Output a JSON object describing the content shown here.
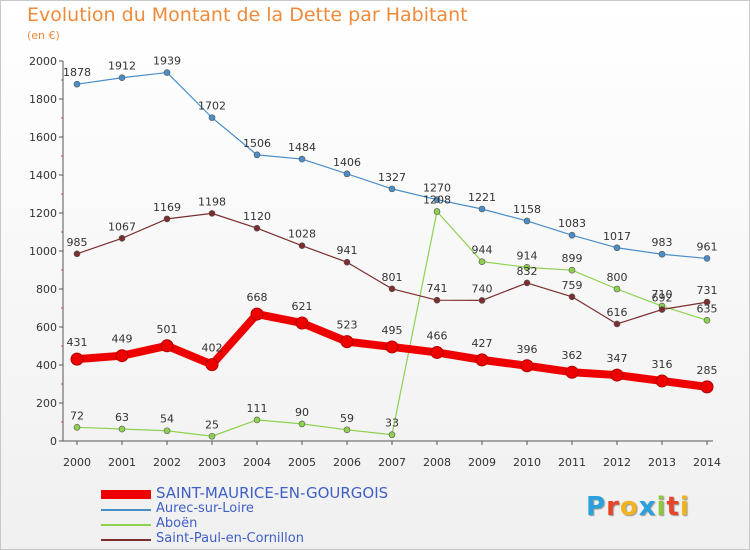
{
  "title": "Evolution du Montant de la Dette par Habitant",
  "subtitle": "(en €)",
  "logo": [
    "P",
    "r",
    "o",
    "x",
    "i",
    "t",
    "i"
  ],
  "logo_colors": [
    "#2aa0dc",
    "#e8442a",
    "#f0b41e",
    "#2aa0dc",
    "#8cc83c",
    "#e8442a",
    "#f0b41e"
  ],
  "chart_data": {
    "type": "line",
    "x": [
      "2000",
      "2001",
      "2002",
      "2003",
      "2004",
      "2005",
      "2006",
      "2007",
      "2008",
      "2009",
      "2010",
      "2011",
      "2012",
      "2013",
      "2014"
    ],
    "ylim": [
      0,
      2000
    ],
    "yticks": [
      0,
      200,
      400,
      600,
      800,
      1000,
      1200,
      1400,
      1600,
      1800,
      2000
    ],
    "grid": false,
    "legend": "bottom-left",
    "series": [
      {
        "name": "SAINT-MAURICE-EN-GOURGOIS",
        "color": "#ee0000",
        "values": [
          431,
          449,
          501,
          402,
          668,
          621,
          523,
          495,
          466,
          427,
          396,
          362,
          347,
          316,
          285
        ]
      },
      {
        "name": "Aurec-sur-Loire",
        "color": "#4a8ec9",
        "values": [
          1878,
          1912,
          1939,
          1702,
          1506,
          1484,
          1406,
          1327,
          1270,
          1221,
          1158,
          1083,
          1017,
          983,
          961
        ]
      },
      {
        "name": "Aboën",
        "color": "#8ed14f",
        "values": [
          72,
          63,
          54,
          25,
          111,
          90,
          59,
          33,
          1208,
          944,
          914,
          899,
          800,
          710,
          635
        ]
      },
      {
        "name": "Saint-Paul-en-Cornillon",
        "color": "#7a2e2e",
        "values": [
          985,
          1067,
          1169,
          1198,
          1120,
          1028,
          941,
          801,
          741,
          740,
          832,
          759,
          616,
          692,
          731
        ]
      }
    ]
  }
}
